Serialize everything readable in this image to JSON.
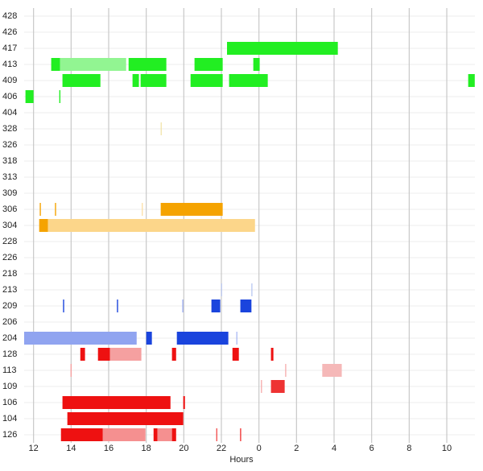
{
  "chart_data": {
    "type": "gantt",
    "xlabel": "Hours",
    "xlim": [
      11.5,
      35.5
    ],
    "xticks": [
      12,
      14,
      16,
      18,
      20,
      22,
      {
        "value": 24,
        "label": "0"
      },
      {
        "value": 26,
        "label": "2"
      },
      {
        "value": 28,
        "label": "4"
      },
      {
        "value": 30,
        "label": "6"
      },
      {
        "value": 32,
        "label": "8"
      },
      {
        "value": 34,
        "label": "10"
      }
    ],
    "grid": true,
    "rows": [
      {
        "label": "428",
        "bars": []
      },
      {
        "label": "426",
        "bars": []
      },
      {
        "label": "417",
        "bars": [
          {
            "start": 22.3,
            "end": 28.2,
            "color": "#22ee22"
          }
        ]
      },
      {
        "label": "413",
        "bars": [
          {
            "start": 12.94,
            "end": 13.41,
            "color": "#22ee22"
          },
          {
            "start": 13.41,
            "end": 16.93,
            "color": "#92f592"
          },
          {
            "start": 17.06,
            "end": 19.07,
            "color": "#22ee22"
          },
          {
            "start": 20.57,
            "end": 22.07,
            "color": "#22ee22"
          },
          {
            "start": 23.7,
            "end": 24.04,
            "color": "#22ee22"
          }
        ]
      },
      {
        "label": "409",
        "bars": [
          {
            "start": 13.54,
            "end": 15.56,
            "color": "#22ee22"
          },
          {
            "start": 17.27,
            "end": 17.61,
            "color": "#22ee22"
          },
          {
            "start": 17.7,
            "end": 19.07,
            "color": "#22ee22"
          },
          {
            "start": 20.36,
            "end": 22.07,
            "color": "#22ee22"
          },
          {
            "start": 22.41,
            "end": 24.47,
            "color": "#22ee22"
          },
          {
            "start": 35.14,
            "end": 35.49,
            "color": "#22ee22"
          }
        ]
      },
      {
        "label": "406",
        "bars": [
          {
            "start": 11.57,
            "end": 12.0,
            "color": "#22ee22"
          },
          {
            "start": 13.37,
            "end": 13.43,
            "color": "#22ee22"
          }
        ]
      },
      {
        "label": "404",
        "bars": []
      },
      {
        "label": "328",
        "bars": [
          {
            "start": 18.77,
            "end": 18.82,
            "color": "#f0e0a0"
          }
        ]
      },
      {
        "label": "326",
        "bars": []
      },
      {
        "label": "318",
        "bars": []
      },
      {
        "label": "313",
        "bars": []
      },
      {
        "label": "309",
        "bars": []
      },
      {
        "label": "306",
        "bars": [
          {
            "start": 12.33,
            "end": 12.39,
            "color": "#f5a300"
          },
          {
            "start": 13.14,
            "end": 13.2,
            "color": "#f5a300"
          },
          {
            "start": 17.77,
            "end": 17.81,
            "color": "#fcd68a"
          },
          {
            "start": 18.77,
            "end": 22.07,
            "color": "#f5a300"
          }
        ]
      },
      {
        "label": "304",
        "bars": [
          {
            "start": 12.3,
            "end": 12.77,
            "color": "#f5a300"
          },
          {
            "start": 12.77,
            "end": 23.79,
            "color": "#fcd68a"
          }
        ]
      },
      {
        "label": "228",
        "bars": []
      },
      {
        "label": "226",
        "bars": []
      },
      {
        "label": "218",
        "bars": []
      },
      {
        "label": "213",
        "bars": [
          {
            "start": 21.99,
            "end": 22.03,
            "color": "#b0c0f0"
          },
          {
            "start": 23.6,
            "end": 23.65,
            "color": "#b0c0f0"
          }
        ]
      },
      {
        "label": "209",
        "bars": [
          {
            "start": 13.57,
            "end": 13.63,
            "color": "#1a44dd"
          },
          {
            "start": 16.44,
            "end": 16.5,
            "color": "#1a44dd"
          },
          {
            "start": 19.92,
            "end": 19.97,
            "color": "#90a4f0"
          },
          {
            "start": 21.47,
            "end": 21.94,
            "color": "#1a44dd"
          },
          {
            "start": 23.01,
            "end": 23.6,
            "color": "#1a44dd"
          }
        ]
      },
      {
        "label": "206",
        "bars": []
      },
      {
        "label": "204",
        "bars": [
          {
            "start": 11.5,
            "end": 17.49,
            "color": "#90a4f0"
          },
          {
            "start": 18.0,
            "end": 18.3,
            "color": "#1a44dd"
          },
          {
            "start": 19.63,
            "end": 22.37,
            "color": "#1a44dd"
          },
          {
            "start": 22.8,
            "end": 22.84,
            "color": "#90a4f0"
          }
        ]
      },
      {
        "label": "128",
        "bars": [
          {
            "start": 14.49,
            "end": 14.74,
            "color": "#ee1111"
          },
          {
            "start": 15.43,
            "end": 16.07,
            "color": "#ee1111"
          },
          {
            "start": 16.07,
            "end": 17.74,
            "color": "#f5a0a0"
          },
          {
            "start": 19.37,
            "end": 19.59,
            "color": "#ee1111"
          },
          {
            "start": 22.59,
            "end": 22.93,
            "color": "#ee1111"
          },
          {
            "start": 24.64,
            "end": 24.77,
            "color": "#ee1111"
          }
        ]
      },
      {
        "label": "113",
        "bars": [
          {
            "start": 13.97,
            "end": 14.03,
            "color": "#f5a0a0"
          },
          {
            "start": 25.4,
            "end": 25.45,
            "color": "#f5a0a0"
          },
          {
            "start": 27.37,
            "end": 28.41,
            "color": "#f5b8b8"
          }
        ]
      },
      {
        "label": "109",
        "bars": [
          {
            "start": 24.11,
            "end": 24.16,
            "color": "#f5a0a0"
          },
          {
            "start": 24.64,
            "end": 25.37,
            "color": "#ee3333"
          }
        ]
      },
      {
        "label": "106",
        "bars": [
          {
            "start": 13.54,
            "end": 19.29,
            "color": "#ee1111"
          },
          {
            "start": 19.97,
            "end": 20.06,
            "color": "#ee1111"
          }
        ]
      },
      {
        "label": "104",
        "bars": [
          {
            "start": 13.8,
            "end": 19.97,
            "color": "#ee1111"
          }
        ]
      },
      {
        "label": "126",
        "bars": [
          {
            "start": 13.46,
            "end": 15.69,
            "color": "#ee1111"
          },
          {
            "start": 15.69,
            "end": 17.96,
            "color": "#f59090"
          },
          {
            "start": 18.39,
            "end": 18.6,
            "color": "#ee1111"
          },
          {
            "start": 18.6,
            "end": 19.37,
            "color": "#f59090"
          },
          {
            "start": 19.37,
            "end": 19.59,
            "color": "#ee1111"
          },
          {
            "start": 21.73,
            "end": 21.77,
            "color": "#ee1111"
          },
          {
            "start": 23.0,
            "end": 23.05,
            "color": "#ee1111"
          }
        ]
      }
    ]
  }
}
